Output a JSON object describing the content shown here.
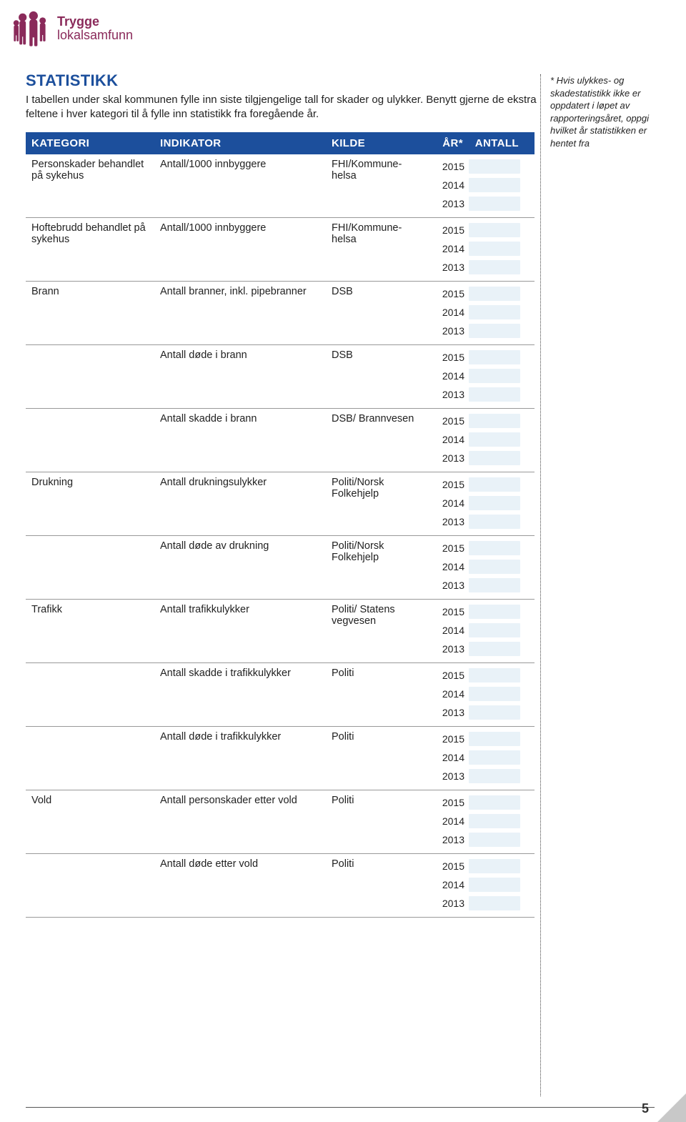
{
  "brand": {
    "line1": "Trygge",
    "line2": "lokalsamfunn",
    "color": "#8a2a5a"
  },
  "heading": "STATISTIKK",
  "intro": "I tabellen under skal kommunen fylle inn siste tilgjengelige tall for skader og ulykker. Benytt gjerne de ekstra feltene i hver kategori til å fylle inn statistikk fra foregående år.",
  "sidenote": "* Hvis ulykkes- og skadestatistikk ikke er oppdatert i løpet av rapporteringsåret, oppgi hvilket år statistikken er hentet fra",
  "columns": {
    "kategori": "KATEGORI",
    "indikator": "INDIKATOR",
    "kilde": "KILDE",
    "year": "ÅR*",
    "antall": "ANTALL"
  },
  "years": [
    "2015",
    "2014",
    "2013"
  ],
  "theme": {
    "header_bg": "#1c4f9c",
    "header_fg": "#ffffff",
    "antall_box_bg": "#e9f2f8",
    "dotted_color": "#444444",
    "brand_color": "#8a2a5a",
    "title_color": "#1c4f9c"
  },
  "page_number": "5",
  "rows": [
    {
      "kategori": "Personskader behandlet på sykehus",
      "indikator": "Antall/1000 innbyggere",
      "kilde": "FHI/Kommune-helsa"
    },
    {
      "kategori": "Hoftebrudd behandlet på sykehus",
      "indikator": "Antall/1000 innbyggere",
      "kilde": "FHI/Kommune-helsa"
    },
    {
      "kategori": "Brann",
      "indikator": "Antall branner, inkl. pipebranner",
      "kilde": "DSB"
    },
    {
      "kategori": "",
      "indikator": "Antall døde i brann",
      "kilde": "DSB"
    },
    {
      "kategori": "",
      "indikator": "Antall skadde i brann",
      "kilde": "DSB/ Brannvesen"
    },
    {
      "kategori": "Drukning",
      "indikator": "Antall drukningsulykker",
      "kilde": "Politi/Norsk Folkehjelp"
    },
    {
      "kategori": "",
      "indikator": "Antall døde av drukning",
      "kilde": "Politi/Norsk Folkehjelp"
    },
    {
      "kategori": "Trafikk",
      "indikator": "Antall trafikkulykker",
      "kilde": "Politi/ Statens vegvesen"
    },
    {
      "kategori": "",
      "indikator": "Antall skadde i trafikkulykker",
      "kilde": "Politi"
    },
    {
      "kategori": "",
      "indikator": "Antall døde i trafikkulykker",
      "kilde": "Politi"
    },
    {
      "kategori": "Vold",
      "indikator": "Antall personskader etter vold",
      "kilde": "Politi"
    },
    {
      "kategori": "",
      "indikator": "Antall døde etter vold",
      "kilde": "Politi"
    }
  ]
}
